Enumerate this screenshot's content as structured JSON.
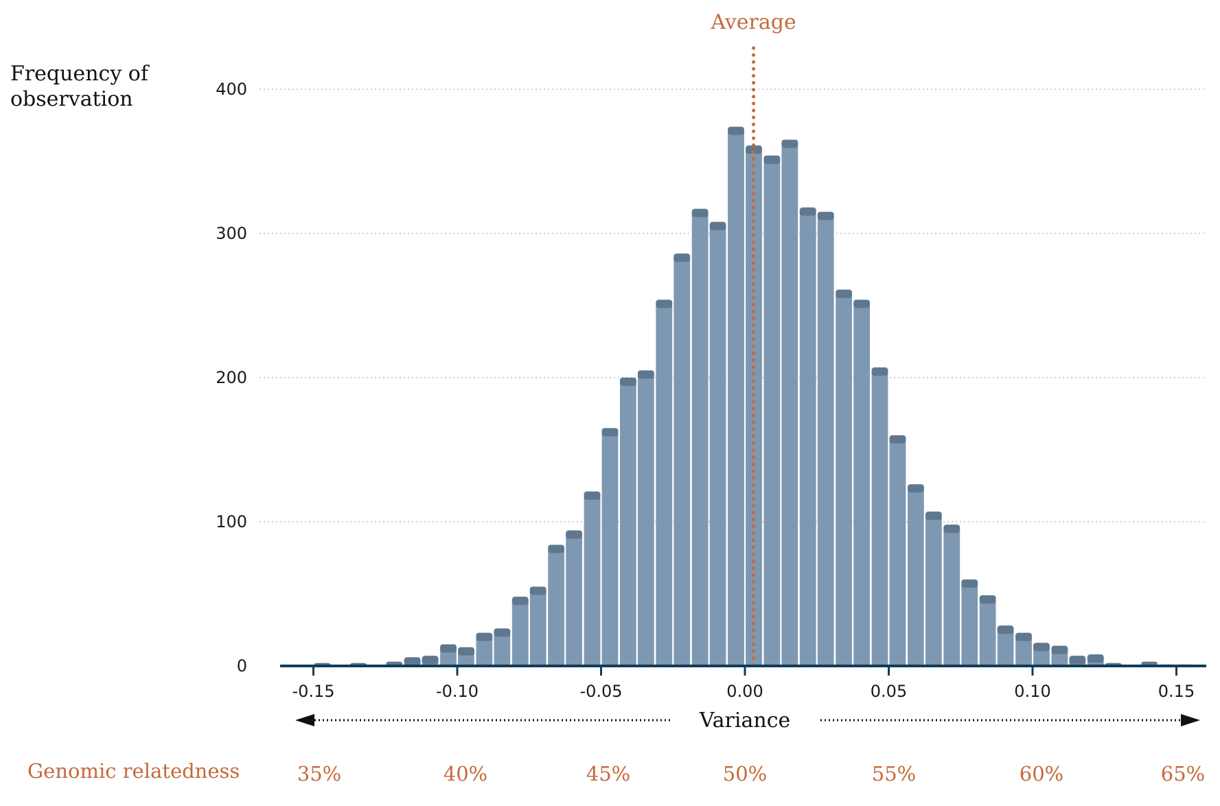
{
  "chart_data": {
    "type": "bar",
    "title": "",
    "ylabel_lines": [
      "Frequency of",
      "observation"
    ],
    "xlabel": "Variance",
    "annotation": "Average",
    "average_x": 0.003,
    "ylim": [
      0,
      400
    ],
    "xlim": [
      -0.16,
      0.16
    ],
    "y_ticks": [
      0,
      100,
      200,
      300,
      400
    ],
    "x_ticks": [
      -0.15,
      -0.1,
      -0.05,
      0.0,
      0.05,
      0.1,
      0.15
    ],
    "x_tick_labels": [
      "-0.15",
      "-0.10",
      "-0.05",
      "0.00",
      "0.05",
      "0.10",
      "0.15"
    ],
    "grid": true,
    "bin_width": 0.00625,
    "bin_centers": [
      -0.1469,
      -0.1406,
      -0.1344,
      -0.1281,
      -0.1219,
      -0.1156,
      -0.1094,
      -0.1031,
      -0.0969,
      -0.0906,
      -0.0844,
      -0.0781,
      -0.0719,
      -0.0656,
      -0.0594,
      -0.0531,
      -0.0469,
      -0.0406,
      -0.0344,
      -0.0281,
      -0.0219,
      -0.0156,
      -0.0094,
      -0.0031,
      0.0031,
      0.0094,
      0.0156,
      0.0219,
      0.0281,
      0.0344,
      0.0406,
      0.0469,
      0.0531,
      0.0594,
      0.0656,
      0.0719,
      0.0781,
      0.0844,
      0.0906,
      0.0969,
      0.1031,
      0.1094,
      0.1156,
      0.1219,
      0.1281,
      0.1344,
      0.1406,
      0.1469,
      0.1531
    ],
    "values": [
      2,
      0,
      2,
      0,
      3,
      6,
      7,
      15,
      13,
      23,
      26,
      48,
      55,
      84,
      94,
      121,
      165,
      200,
      205,
      254,
      286,
      317,
      308,
      374,
      361,
      354,
      365,
      318,
      315,
      261,
      254,
      207,
      160,
      126,
      107,
      98,
      60,
      49,
      28,
      23,
      16,
      14,
      7,
      8,
      2,
      0,
      3,
      1,
      1
    ],
    "relatedness_label": "Genomic relatedness",
    "relatedness_ticks": [
      "35%",
      "40%",
      "45%",
      "50%",
      "55%",
      "60%",
      "65%"
    ],
    "colors": {
      "bar": "#7f98b1",
      "bar_top": "#5f7890",
      "axis": "#0f3d5c",
      "accent": "#c46a3c",
      "grid": "#cccccc"
    }
  }
}
